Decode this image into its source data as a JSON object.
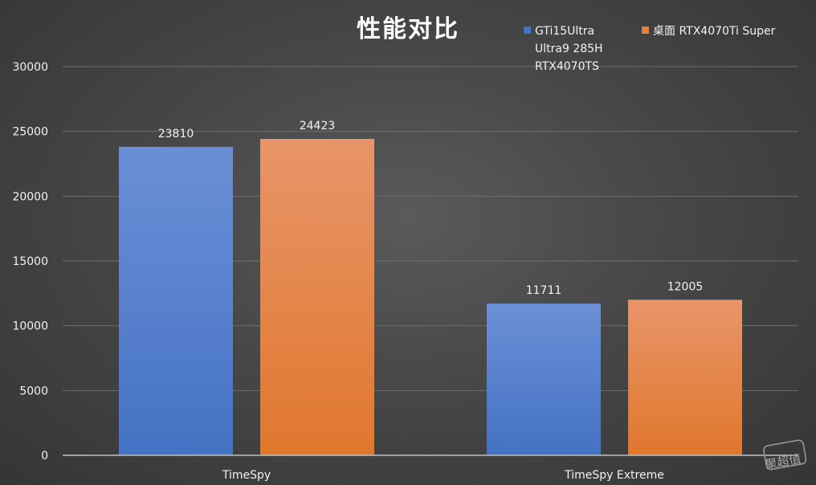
{
  "chart_data": {
    "type": "bar",
    "title": "性能对比",
    "xlabel": "",
    "ylabel": "",
    "categories": [
      "TimeSpy",
      "TimeSpy Extreme"
    ],
    "series": [
      {
        "name": "GTi15Ultra Ultra9 285H RTX4070TS",
        "name_lines": [
          "GTi15Ultra",
          "Ultra9 285H",
          "RTX4070TS"
        ],
        "values": [
          23810,
          11711
        ],
        "color": "#4472c4",
        "color_light": "#6b8fd6"
      },
      {
        "name": "桌面 RTX4070Ti Super",
        "name_lines": [
          "桌面 RTX4070Ti Super"
        ],
        "values": [
          24423,
          12005
        ],
        "color": "#ed7d31",
        "color_light": "#e8956a"
      }
    ],
    "ylim": [
      0,
      30000
    ],
    "yticks": [
      0,
      5000,
      10000,
      15000,
      20000,
      25000,
      30000
    ],
    "grid": true,
    "legend_position": "top-right",
    "data_labels": true
  },
  "watermark": {
    "text": "聚超值",
    "icon": "watermark-logo-icon"
  },
  "colors": {
    "grid": "#6e6e6e",
    "axis": "#bfbfbf",
    "text": "#f2f2f2"
  }
}
